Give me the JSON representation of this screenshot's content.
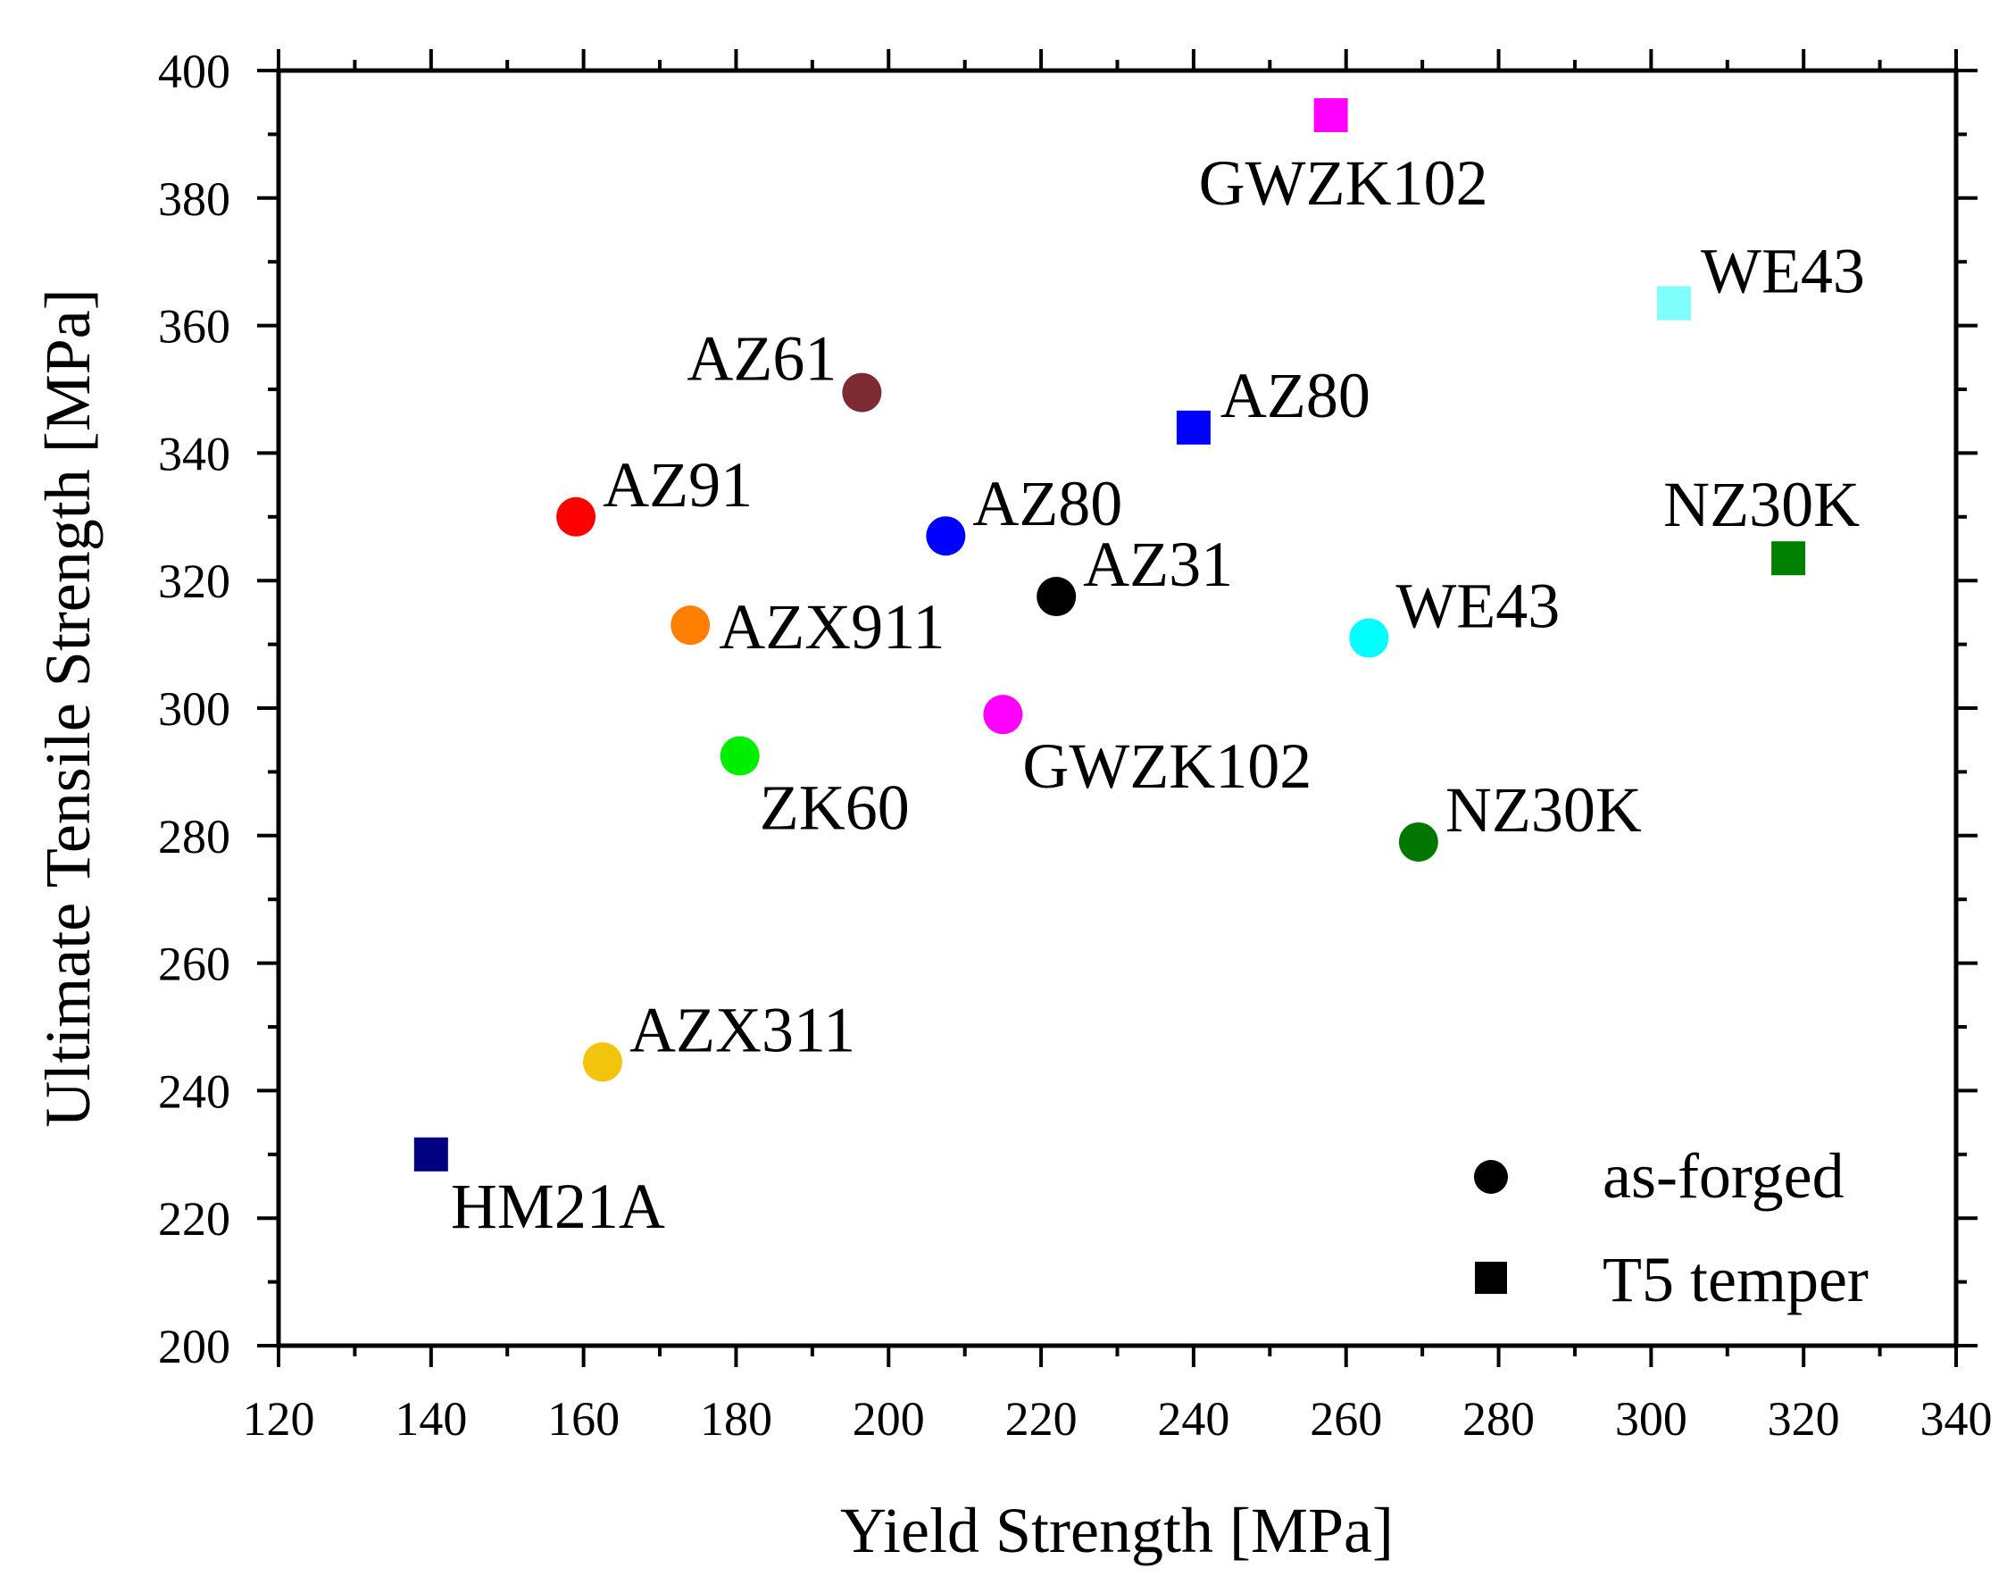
{
  "chart_data": {
    "type": "scatter",
    "xlabel": "Yield Strength [MPa]",
    "ylabel": "Ultimate Tensile Strength [MPa]",
    "xlim": [
      120,
      340
    ],
    "ylim": [
      200,
      400
    ],
    "xticks": [
      120,
      140,
      160,
      180,
      200,
      220,
      240,
      260,
      280,
      300,
      320,
      340
    ],
    "yticks": [
      200,
      220,
      240,
      260,
      280,
      300,
      320,
      340,
      360,
      380,
      400
    ],
    "grid": false,
    "legend_position": "bottom-right",
    "legend": [
      {
        "label": "as-forged",
        "marker": "circle",
        "color": "#000000"
      },
      {
        "label": "T5 temper",
        "marker": "square",
        "color": "#000000"
      }
    ],
    "points": [
      {
        "label": "AZ91",
        "x": 159,
        "y": 330,
        "condition": "as-forged",
        "color": "#ff0000",
        "label_pos": "upper-right"
      },
      {
        "label": "AZ61",
        "x": 196.5,
        "y": 349.5,
        "condition": "as-forged",
        "color": "#7d2a33",
        "label_pos": "upper-left"
      },
      {
        "label": "AZX911",
        "x": 174,
        "y": 313,
        "condition": "as-forged",
        "color": "#ff8000",
        "label_pos": "right"
      },
      {
        "label": "ZK60",
        "x": 180.5,
        "y": 292.5,
        "condition": "as-forged",
        "color": "#00ee00",
        "label_pos": "lower-right"
      },
      {
        "label": "AZ80",
        "x": 207.5,
        "y": 327,
        "condition": "as-forged",
        "color": "#0000ff",
        "label_pos": "upper-right"
      },
      {
        "label": "GWZK102",
        "x": 215,
        "y": 299,
        "condition": "as-forged",
        "color": "#ff00ff",
        "label_pos": "lower-right"
      },
      {
        "label": "AZ31",
        "x": 222,
        "y": 317.5,
        "condition": "as-forged",
        "color": "#000000",
        "label_pos": "upper-right"
      },
      {
        "label": "WE43",
        "x": 263,
        "y": 311,
        "condition": "as-forged",
        "color": "#00ffff",
        "label_pos": "upper-right"
      },
      {
        "label": "NZ30K",
        "x": 269.5,
        "y": 279,
        "condition": "as-forged",
        "color": "#007700",
        "label_pos": "upper-right"
      },
      {
        "label": "AZX311",
        "x": 162.5,
        "y": 244.5,
        "condition": "as-forged",
        "color": "#f2c40c",
        "label_pos": "upper-right"
      },
      {
        "label": "HM21A",
        "x": 140,
        "y": 230,
        "condition": "T5 temper",
        "color": "#000080",
        "label_pos": "lower-right"
      },
      {
        "label": "AZ80",
        "x": 240,
        "y": 344,
        "condition": "T5 temper",
        "color": "#0000ff",
        "label_pos": "upper-right"
      },
      {
        "label": "GWZK102",
        "x": 258,
        "y": 393,
        "condition": "T5 temper",
        "color": "#ff00ff",
        "label_pos": "below"
      },
      {
        "label": "WE43",
        "x": 303,
        "y": 363.5,
        "condition": "T5 temper",
        "color": "#80ffff",
        "label_pos": "upper-right"
      },
      {
        "label": "NZ30K",
        "x": 318,
        "y": 323.5,
        "condition": "T5 temper",
        "color": "#008000",
        "label_pos": "above"
      }
    ]
  }
}
